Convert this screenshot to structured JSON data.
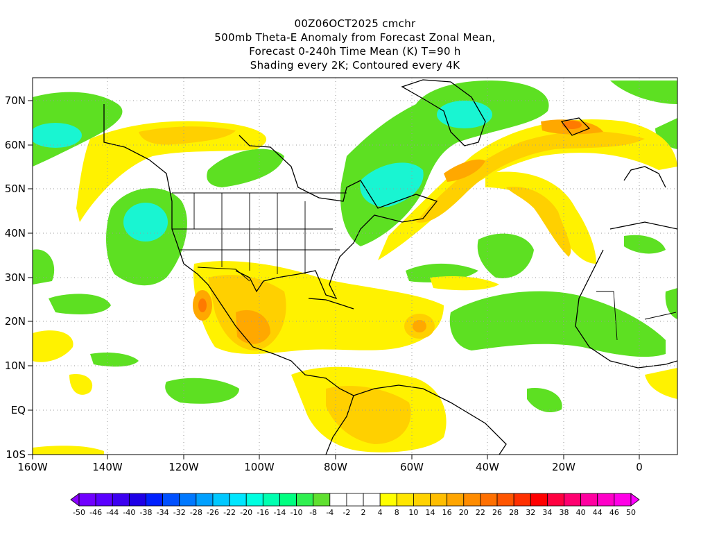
{
  "title": {
    "line1": "00Z06OCT2025 cmchr",
    "line2": "500mb Theta-E Anomaly from Forecast Zonal Mean,",
    "line3": "Forecast 0-240h Time Mean (K) T=90 h",
    "line4": "Shading every 2K; Contoured every 4K"
  },
  "axes": {
    "lat_labels": [
      "70N",
      "60N",
      "50N",
      "40N",
      "30N",
      "20N",
      "10N",
      "EQ",
      "10S"
    ],
    "lon_labels": [
      "160W",
      "140W",
      "120W",
      "100W",
      "80W",
      "60W",
      "40W",
      "20W",
      "0"
    ]
  },
  "colorbar": {
    "labels": [
      "-50",
      "-46",
      "-44",
      "-40",
      "-38",
      "-34",
      "-32",
      "-28",
      "-26",
      "-22",
      "-20",
      "-16",
      "-14",
      "-10",
      "-8",
      "-4",
      "-2",
      "2",
      "4",
      "8",
      "10",
      "14",
      "16",
      "20",
      "22",
      "26",
      "28",
      "32",
      "34",
      "38",
      "40",
      "44",
      "46",
      "50"
    ],
    "colors": [
      "#8a00ff",
      "#7000ff",
      "#5a00ff",
      "#3c00f0",
      "#1e00e6",
      "#0020ff",
      "#0050ff",
      "#0078ff",
      "#00a0ff",
      "#00c8ff",
      "#00e6ff",
      "#00ffe0",
      "#00ffb0",
      "#00ff80",
      "#30f050",
      "#60e030",
      "#ffffff",
      "#ffffff",
      "#ffffff",
      "#ffff00",
      "#ffe600",
      "#ffd200",
      "#ffbe00",
      "#ffa500",
      "#ff8c00",
      "#ff7000",
      "#ff5500",
      "#ff3000",
      "#ff0000",
      "#ff0040",
      "#ff0070",
      "#ff00a0",
      "#ff00c8",
      "#ff00e6",
      "#ff00ff"
    ]
  },
  "palette": {
    "green": "#5de022",
    "cyan": "#19f5d2",
    "yellow": "#fff200",
    "gold": "#ffd000",
    "orange": "#ffa800",
    "red_orange": "#ff7a00",
    "grid": "#9a9a9a"
  }
}
